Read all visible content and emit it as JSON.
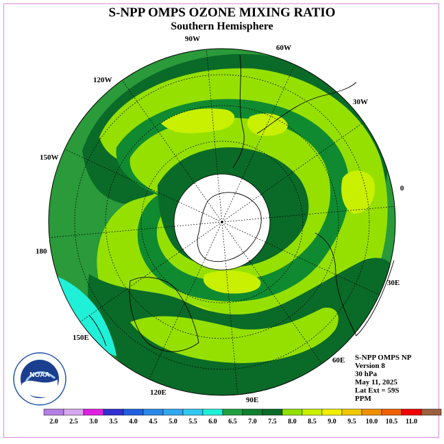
{
  "title": "S-NPP OMPS OZONE MIXING RATIO",
  "subtitle": "Southern Hemisphere",
  "longitude_labels": [
    "90W",
    "60W",
    "30W",
    "0",
    "30E",
    "60E",
    "90E",
    "120E",
    "150E",
    "180",
    "150W",
    "120W"
  ],
  "info": {
    "product": "S-NPP OMPS NP",
    "version": "Version 8",
    "level": "30 hPa",
    "date": "May 11, 2025",
    "lat_ext": "Lat Ext = 59S",
    "units": "PPM"
  },
  "logo_text": "NOAA",
  "colorbar": {
    "labels": [
      "2.0",
      "2.5",
      "3.0",
      "3.5",
      "4.0",
      "4.5",
      "5.0",
      "5.5",
      "6.0",
      "6.5",
      "7.0",
      "7.5",
      "8.0",
      "8.5",
      "9.0",
      "9.5",
      "10.0",
      "10.5",
      "11.0"
    ],
    "colors": [
      "#b57ee6",
      "#d7a6f0",
      "#e020e0",
      "#3030d0",
      "#2060e0",
      "#2a88e8",
      "#30a8f0",
      "#30c8f0",
      "#20f0d8",
      "#20a040",
      "#108030",
      "#0a6a28",
      "#90e000",
      "#c8f000",
      "#f0f000",
      "#f0c800",
      "#f09000",
      "#f06000",
      "#f00000",
      "#9a6040"
    ]
  },
  "colors": {
    "dark_green": "#0a6a28",
    "mid_green": "#108a30",
    "green": "#2a9a3a",
    "lime": "#96e000",
    "yellow_green": "#c8f000",
    "cyan": "#20f0d8",
    "polar_cap": "#ffffff"
  }
}
